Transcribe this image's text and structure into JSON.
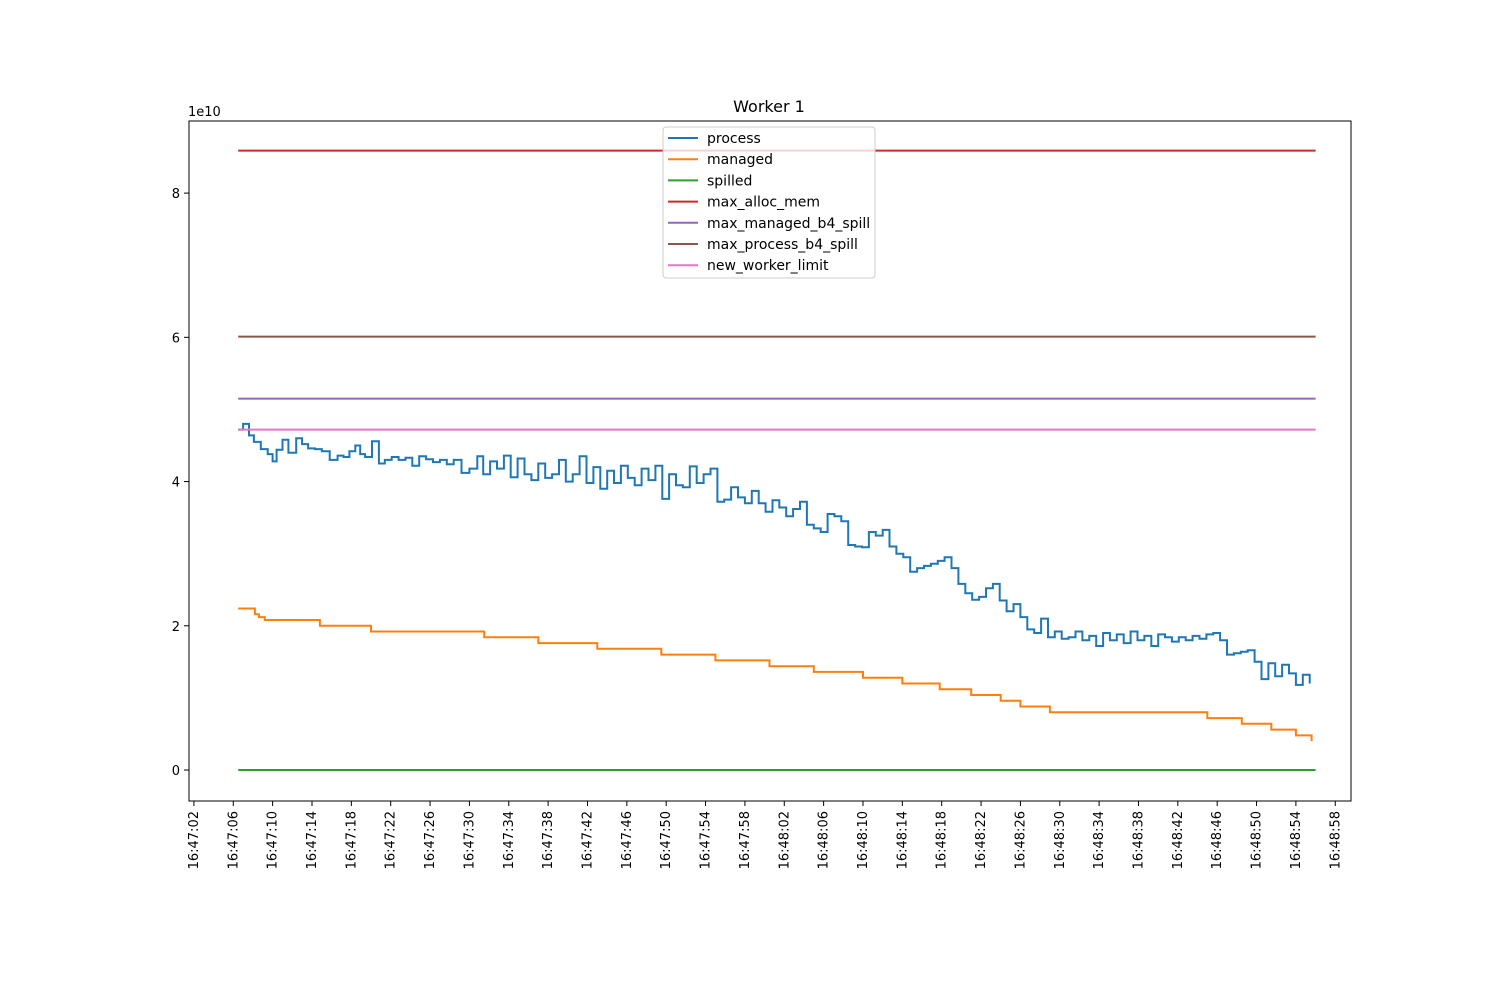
{
  "chart_data": {
    "type": "line",
    "title": "Worker 1",
    "xlabel": "",
    "ylabel": "",
    "y_offset_label": "1e10",
    "ylim": [
      -4.3,
      90.0
    ],
    "yticks": [
      0,
      2,
      4,
      6,
      8
    ],
    "xlim": [
      "16:47:01.5",
      "16:48:59.6"
    ],
    "xticks": [
      "16:47:02",
      "16:47:06",
      "16:47:10",
      "16:47:14",
      "16:47:18",
      "16:47:22",
      "16:47:26",
      "16:47:30",
      "16:47:34",
      "16:47:38",
      "16:47:42",
      "16:47:46",
      "16:47:50",
      "16:47:54",
      "16:47:58",
      "16:48:02",
      "16:48:06",
      "16:48:10",
      "16:48:14",
      "16:48:18",
      "16:48:22",
      "16:48:26",
      "16:48:30",
      "16:48:34",
      "16:48:38",
      "16:48:42",
      "16:48:46",
      "16:48:50",
      "16:48:54",
      "16:48:58"
    ],
    "grid": false,
    "legend_position": "upper center",
    "line_style": "steps-post",
    "series": [
      {
        "name": "process",
        "color": "#1f77b4",
        "x": [
          "16:47:06.5",
          "16:47:07.0",
          "16:47:07.6",
          "16:47:08.1",
          "16:47:08.8",
          "16:47:09.5",
          "16:47:10.0",
          "16:47:10.4",
          "16:47:11.0",
          "16:47:11.6",
          "16:47:12.4",
          "16:47:13.0",
          "16:47:13.6",
          "16:47:14.3",
          "16:47:15.0",
          "16:47:15.8",
          "16:47:16.6",
          "16:47:17.2",
          "16:47:17.8",
          "16:47:18.4",
          "16:47:18.9",
          "16:47:19.4",
          "16:47:20.1",
          "16:47:20.8",
          "16:47:21.4",
          "16:47:22.1",
          "16:47:22.8",
          "16:47:23.5",
          "16:47:24.2",
          "16:47:24.9",
          "16:47:25.6",
          "16:47:26.3",
          "16:47:27.0",
          "16:47:27.7",
          "16:47:28.4",
          "16:47:29.2",
          "16:47:30.0",
          "16:47:30.8",
          "16:47:31.4",
          "16:47:32.1",
          "16:47:32.8",
          "16:47:33.5",
          "16:47:34.2",
          "16:47:34.9",
          "16:47:35.6",
          "16:47:36.3",
          "16:47:37.0",
          "16:47:37.7",
          "16:47:38.4",
          "16:47:39.1",
          "16:47:39.8",
          "16:47:40.5",
          "16:47:41.2",
          "16:47:41.9",
          "16:47:42.6",
          "16:47:43.3",
          "16:47:44.0",
          "16:47:44.7",
          "16:47:45.4",
          "16:47:46.1",
          "16:47:46.8",
          "16:47:47.5",
          "16:47:48.2",
          "16:47:48.9",
          "16:47:49.6",
          "16:47:50.3",
          "16:47:51.0",
          "16:47:51.7",
          "16:47:52.4",
          "16:47:53.1",
          "16:47:53.8",
          "16:47:54.5",
          "16:47:55.2",
          "16:47:55.9",
          "16:47:56.6",
          "16:47:57.3",
          "16:47:58.0",
          "16:47:58.7",
          "16:47:59.4",
          "16:48:00.1",
          "16:48:00.8",
          "16:48:01.5",
          "16:48:02.2",
          "16:48:02.9",
          "16:48:03.6",
          "16:48:04.3",
          "16:48:05.0",
          "16:48:05.7",
          "16:48:06.4",
          "16:48:07.1",
          "16:48:07.8",
          "16:48:08.5",
          "16:48:09.2",
          "16:48:09.9",
          "16:48:10.6",
          "16:48:11.3",
          "16:48:12.0",
          "16:48:12.7",
          "16:48:13.4",
          "16:48:14.1",
          "16:48:14.8",
          "16:48:15.5",
          "16:48:16.2",
          "16:48:16.9",
          "16:48:17.6",
          "16:48:18.3",
          "16:48:19.0",
          "16:48:19.7",
          "16:48:20.4",
          "16:48:21.1",
          "16:48:21.8",
          "16:48:22.5",
          "16:48:23.2",
          "16:48:23.9",
          "16:48:24.6",
          "16:48:25.3",
          "16:48:26.0",
          "16:48:26.7",
          "16:48:27.4",
          "16:48:28.1",
          "16:48:28.8",
          "16:48:29.5",
          "16:48:30.2",
          "16:48:30.9",
          "16:48:31.6",
          "16:48:32.3",
          "16:48:33.0",
          "16:48:33.7",
          "16:48:34.4",
          "16:48:35.1",
          "16:48:35.8",
          "16:48:36.5",
          "16:48:37.2",
          "16:48:37.9",
          "16:48:38.6",
          "16:48:39.3",
          "16:48:40.0",
          "16:48:40.7",
          "16:48:41.4",
          "16:48:42.1",
          "16:48:42.8",
          "16:48:43.5",
          "16:48:44.2",
          "16:48:44.9",
          "16:48:45.6",
          "16:48:46.3",
          "16:48:47.0",
          "16:48:47.7",
          "16:48:48.4",
          "16:48:49.1",
          "16:48:49.8",
          "16:48:50.5",
          "16:48:51.2",
          "16:48:51.9",
          "16:48:52.6",
          "16:48:53.3",
          "16:48:54.0",
          "16:48:54.7",
          "16:48:55.4"
        ],
        "values": [
          4.72,
          4.8,
          4.64,
          4.55,
          4.45,
          4.38,
          4.28,
          4.44,
          4.58,
          4.4,
          4.6,
          4.52,
          4.46,
          4.45,
          4.42,
          4.3,
          4.36,
          4.34,
          4.42,
          4.5,
          4.38,
          4.34,
          4.56,
          4.25,
          4.3,
          4.34,
          4.3,
          4.33,
          4.22,
          4.35,
          4.31,
          4.27,
          4.3,
          4.24,
          4.3,
          4.12,
          4.18,
          4.35,
          4.1,
          4.28,
          4.18,
          4.36,
          4.06,
          4.32,
          4.1,
          4.02,
          4.25,
          4.05,
          4.1,
          4.3,
          4.0,
          4.1,
          4.35,
          3.98,
          4.2,
          3.9,
          4.15,
          3.98,
          4.22,
          4.05,
          3.95,
          4.18,
          4.02,
          4.22,
          3.76,
          4.1,
          3.95,
          3.92,
          4.21,
          3.98,
          4.1,
          4.18,
          3.72,
          3.75,
          3.92,
          3.78,
          3.7,
          3.87,
          3.7,
          3.58,
          3.74,
          3.64,
          3.52,
          3.62,
          3.72,
          3.4,
          3.35,
          3.3,
          3.55,
          3.52,
          3.45,
          3.12,
          3.1,
          3.09,
          3.3,
          3.25,
          3.33,
          3.1,
          3.0,
          2.95,
          2.75,
          2.8,
          2.83,
          2.86,
          2.9,
          2.95,
          2.8,
          2.58,
          2.45,
          2.36,
          2.4,
          2.52,
          2.58,
          2.35,
          2.2,
          2.3,
          2.12,
          1.95,
          1.9,
          2.1,
          1.84,
          1.92,
          1.82,
          1.84,
          1.92,
          1.8,
          1.86,
          1.72,
          1.9,
          1.8,
          1.88,
          1.76,
          1.92,
          1.8,
          1.86,
          1.72,
          1.88,
          1.84,
          1.78,
          1.84,
          1.8,
          1.86,
          1.82,
          1.88,
          1.9,
          1.8,
          1.6,
          1.62,
          1.64,
          1.66,
          1.5,
          1.26,
          1.48,
          1.3,
          1.46,
          1.34,
          1.18,
          1.32,
          1.2
        ]
      },
      {
        "name": "managed",
        "color": "#ff7f0e",
        "x": [
          "16:47:06.5",
          "16:47:07.8",
          "16:47:08.2",
          "16:47:08.6",
          "16:47:09.2",
          "16:47:14.8",
          "16:47:20.0",
          "16:47:25.0",
          "16:47:31.5",
          "16:47:37.0",
          "16:47:43.0",
          "16:47:49.5",
          "16:47:55.0",
          "16:48:00.5",
          "16:48:05.0",
          "16:48:10.0",
          "16:48:14.0",
          "16:48:17.8",
          "16:48:21.0",
          "16:48:24.0",
          "16:48:26.0",
          "16:48:29.0",
          "16:48:45.0",
          "16:48:48.5",
          "16:48:51.5",
          "16:48:54.0",
          "16:48:55.6"
        ],
        "values": [
          2.24,
          2.24,
          2.16,
          2.12,
          2.08,
          2.0,
          1.92,
          1.92,
          1.84,
          1.76,
          1.68,
          1.6,
          1.52,
          1.44,
          1.36,
          1.28,
          1.2,
          1.12,
          1.04,
          0.96,
          0.88,
          0.8,
          0.72,
          0.64,
          0.56,
          0.48,
          0.4
        ]
      },
      {
        "name": "spilled",
        "color": "#2ca02c",
        "x": [
          "16:47:06.5",
          "16:48:56.0"
        ],
        "values": [
          0.0,
          0.0
        ]
      },
      {
        "name": "max_alloc_mem",
        "color": "#d62728",
        "x": [
          "16:47:06.5",
          "16:48:56.0"
        ],
        "values": [
          8.59,
          8.59
        ]
      },
      {
        "name": "max_managed_b4_spill",
        "color": "#9467bd",
        "x": [
          "16:47:06.5",
          "16:48:56.0"
        ],
        "values": [
          5.15,
          5.15
        ]
      },
      {
        "name": "max_process_b4_spill",
        "color": "#8c564b",
        "x": [
          "16:47:06.5",
          "16:48:56.0"
        ],
        "values": [
          6.01,
          6.01
        ]
      },
      {
        "name": "new_worker_limit",
        "color": "#e377c2",
        "x": [
          "16:47:06.5",
          "16:48:56.0"
        ],
        "values": [
          4.72,
          4.72
        ]
      }
    ]
  }
}
